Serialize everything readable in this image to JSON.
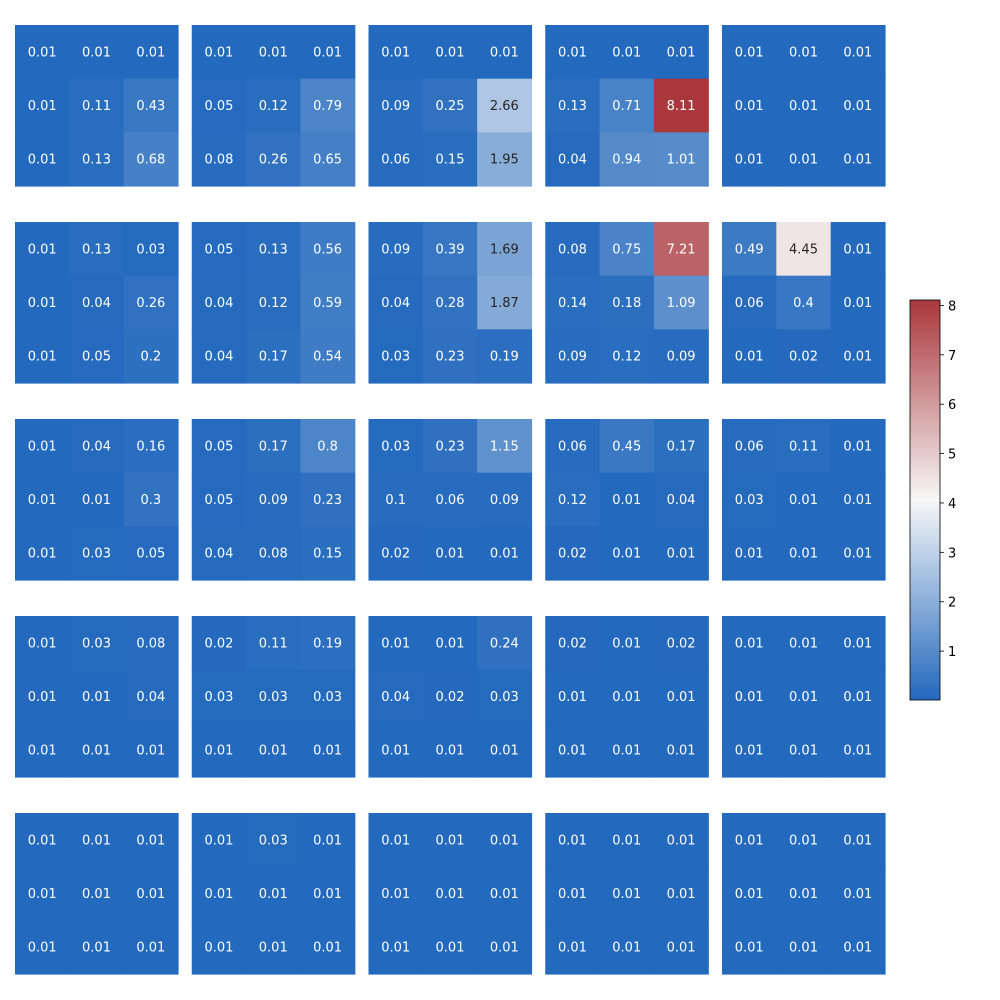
{
  "chart_data": {
    "type": "heatmap",
    "title": "",
    "layout": {
      "rows": 5,
      "cols": 5,
      "cells_per_panel": [
        3,
        3
      ]
    },
    "colorbar": {
      "min": 0.01,
      "max": 8.11,
      "ticks": [
        "1",
        "2",
        "3",
        "4",
        "5",
        "6",
        "7",
        "8"
      ],
      "colormap": "vlag",
      "colors": {
        "low": "#2369bd",
        "mid": "#f7f7f7",
        "high": "#a9373b"
      }
    },
    "panels": [
      [
        [
          "0.01",
          "0.01",
          "0.01"
        ],
        [
          "0.01",
          "0.11",
          "0.43"
        ],
        [
          "0.01",
          "0.13",
          "0.68"
        ]
      ],
      [
        [
          "0.01",
          "0.01",
          "0.01"
        ],
        [
          "0.05",
          "0.12",
          "0.79"
        ],
        [
          "0.08",
          "0.26",
          "0.65"
        ]
      ],
      [
        [
          "0.01",
          "0.01",
          "0.01"
        ],
        [
          "0.09",
          "0.25",
          "2.66"
        ],
        [
          "0.06",
          "0.15",
          "1.95"
        ]
      ],
      [
        [
          "0.01",
          "0.01",
          "0.01"
        ],
        [
          "0.13",
          "0.71",
          "8.11"
        ],
        [
          "0.04",
          "0.94",
          "1.01"
        ]
      ],
      [
        [
          "0.01",
          "0.01",
          "0.01"
        ],
        [
          "0.01",
          "0.01",
          "0.01"
        ],
        [
          "0.01",
          "0.01",
          "0.01"
        ]
      ],
      [
        [
          "0.01",
          "0.13",
          "0.03"
        ],
        [
          "0.01",
          "0.04",
          "0.26"
        ],
        [
          "0.01",
          "0.05",
          "0.2"
        ]
      ],
      [
        [
          "0.05",
          "0.13",
          "0.56"
        ],
        [
          "0.04",
          "0.12",
          "0.59"
        ],
        [
          "0.04",
          "0.17",
          "0.54"
        ]
      ],
      [
        [
          "0.09",
          "0.39",
          "1.69"
        ],
        [
          "0.04",
          "0.28",
          "1.87"
        ],
        [
          "0.03",
          "0.23",
          "0.19"
        ]
      ],
      [
        [
          "0.08",
          "0.75",
          "7.21"
        ],
        [
          "0.14",
          "0.18",
          "1.09"
        ],
        [
          "0.09",
          "0.12",
          "0.09"
        ]
      ],
      [
        [
          "0.49",
          "4.45",
          "0.01"
        ],
        [
          "0.06",
          "0.4",
          "0.01"
        ],
        [
          "0.01",
          "0.02",
          "0.01"
        ]
      ],
      [
        [
          "0.01",
          "0.04",
          "0.16"
        ],
        [
          "0.01",
          "0.01",
          "0.3"
        ],
        [
          "0.01",
          "0.03",
          "0.05"
        ]
      ],
      [
        [
          "0.05",
          "0.17",
          "0.8"
        ],
        [
          "0.05",
          "0.09",
          "0.23"
        ],
        [
          "0.04",
          "0.08",
          "0.15"
        ]
      ],
      [
        [
          "0.03",
          "0.23",
          "1.15"
        ],
        [
          "0.1",
          "0.06",
          "0.09"
        ],
        [
          "0.02",
          "0.01",
          "0.01"
        ]
      ],
      [
        [
          "0.06",
          "0.45",
          "0.17"
        ],
        [
          "0.12",
          "0.01",
          "0.04"
        ],
        [
          "0.02",
          "0.01",
          "0.01"
        ]
      ],
      [
        [
          "0.06",
          "0.11",
          "0.01"
        ],
        [
          "0.03",
          "0.01",
          "0.01"
        ],
        [
          "0.01",
          "0.01",
          "0.01"
        ]
      ],
      [
        [
          "0.01",
          "0.03",
          "0.08"
        ],
        [
          "0.01",
          "0.01",
          "0.04"
        ],
        [
          "0.01",
          "0.01",
          "0.01"
        ]
      ],
      [
        [
          "0.02",
          "0.11",
          "0.19"
        ],
        [
          "0.03",
          "0.03",
          "0.03"
        ],
        [
          "0.01",
          "0.01",
          "0.01"
        ]
      ],
      [
        [
          "0.01",
          "0.01",
          "0.24"
        ],
        [
          "0.04",
          "0.02",
          "0.03"
        ],
        [
          "0.01",
          "0.01",
          "0.01"
        ]
      ],
      [
        [
          "0.02",
          "0.01",
          "0.02"
        ],
        [
          "0.01",
          "0.01",
          "0.01"
        ],
        [
          "0.01",
          "0.01",
          "0.01"
        ]
      ],
      [
        [
          "0.01",
          "0.01",
          "0.01"
        ],
        [
          "0.01",
          "0.01",
          "0.01"
        ],
        [
          "0.01",
          "0.01",
          "0.01"
        ]
      ],
      [
        [
          "0.01",
          "0.01",
          "0.01"
        ],
        [
          "0.01",
          "0.01",
          "0.01"
        ],
        [
          "0.01",
          "0.01",
          "0.01"
        ]
      ],
      [
        [
          "0.01",
          "0.03",
          "0.01"
        ],
        [
          "0.01",
          "0.01",
          "0.01"
        ],
        [
          "0.01",
          "0.01",
          "0.01"
        ]
      ],
      [
        [
          "0.01",
          "0.01",
          "0.01"
        ],
        [
          "0.01",
          "0.01",
          "0.01"
        ],
        [
          "0.01",
          "0.01",
          "0.01"
        ]
      ],
      [
        [
          "0.01",
          "0.01",
          "0.01"
        ],
        [
          "0.01",
          "0.01",
          "0.01"
        ],
        [
          "0.01",
          "0.01",
          "0.01"
        ]
      ],
      [
        [
          "0.01",
          "0.01",
          "0.01"
        ],
        [
          "0.01",
          "0.01",
          "0.01"
        ],
        [
          "0.01",
          "0.01",
          "0.01"
        ]
      ]
    ]
  }
}
